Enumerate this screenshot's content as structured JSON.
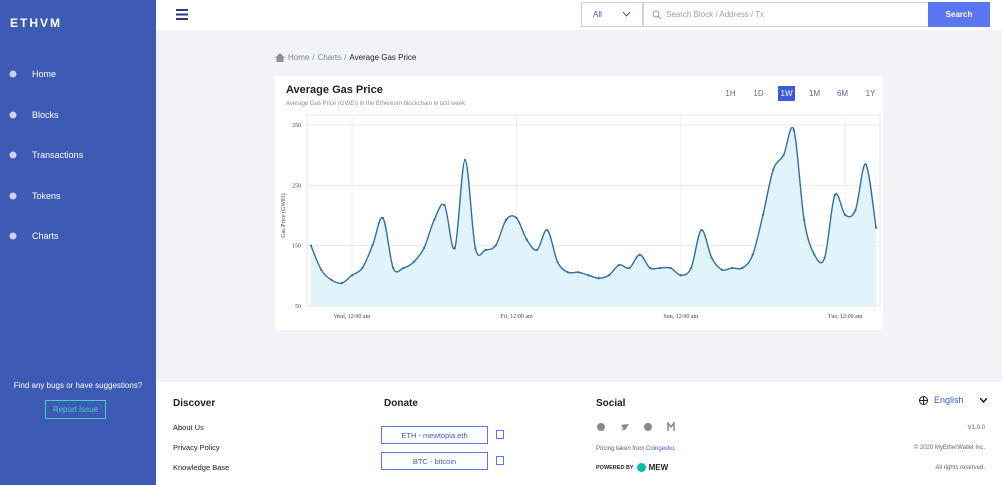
{
  "sidebar": {
    "logo": "ETHVM",
    "nav": [
      "Home",
      "Blocks",
      "Transactions",
      "Tokens",
      "Charts"
    ],
    "feedback_text": "Find any bugs or have suggestions?",
    "feedback_button": "Report Issue"
  },
  "topbar": {
    "filter": "All",
    "search_placeholder": "Search Block / Address / Tx",
    "search_button": "Search"
  },
  "breadcrumb": [
    "Home",
    "Charts",
    "Average Gas Price"
  ],
  "range_options": [
    "1H",
    "1D",
    "1W",
    "1M",
    "6M",
    "1Y"
  ],
  "active_range": "1W",
  "chart_data": {
    "type": "line",
    "title": "Average Gas Price",
    "subtitle": "Average Gas Price (GWEI) in the Ethereum blockchain in last week",
    "y_label": "Gas Price (GWEI)",
    "categories": [
      null,
      null,
      null,
      null,
      "Wed, 12:00 am",
      null,
      null,
      null,
      null,
      null,
      null,
      null,
      null,
      null,
      null,
      null,
      null,
      null,
      null,
      null,
      "Fri, 12:00 am",
      null,
      null,
      null,
      null,
      null,
      null,
      null,
      null,
      null,
      null,
      null,
      null,
      null,
      null,
      null,
      "Sun, 12:00 am",
      null,
      null,
      null,
      null,
      null,
      null,
      null,
      null,
      null,
      null,
      null,
      null,
      null,
      null,
      null,
      "Tue, 12:00 am",
      null,
      null,
      null
    ],
    "series": [
      {
        "name": "Average Gas Price",
        "color": "#2f6fa6",
        "fill": "#e1f3fb",
        "values": [
          150,
          110,
          93,
          88,
          101,
          113,
          151,
          196,
          113,
          113,
          123,
          146,
          193,
          217,
          146,
          292,
          146,
          143,
          151,
          193,
          196,
          160,
          143,
          176,
          123,
          106,
          106,
          101,
          96,
          101,
          118,
          113,
          135,
          113,
          113,
          113,
          101,
          113,
          176,
          130,
          110,
          113,
          113,
          135,
          201,
          276,
          300,
          342,
          193,
          135,
          130,
          234,
          201,
          209,
          285,
          180
        ]
      }
    ],
    "ylim": [
      50,
      350
    ],
    "yticks": [
      50,
      150,
      250,
      350
    ],
    "grid": true
  },
  "footer": {
    "discover_title": "Discover",
    "discover_links": [
      "About Us",
      "Privacy Policy",
      "Knowledge Base"
    ],
    "donate_title": "Donate",
    "donate_buttons": [
      "ETH - mewtopia.eth",
      "BTC - bitcoin"
    ],
    "social_title": "Social",
    "pricing_text": "Pricing taken from",
    "pricing_link": "Coingecko.",
    "powered_by": "POWERED BY",
    "powered_brand": "MEW",
    "language": "English",
    "version": "V1.0.0",
    "copyright": "© 2020 MyEtherWallet Inc.",
    "rights": "All rights reserved."
  }
}
